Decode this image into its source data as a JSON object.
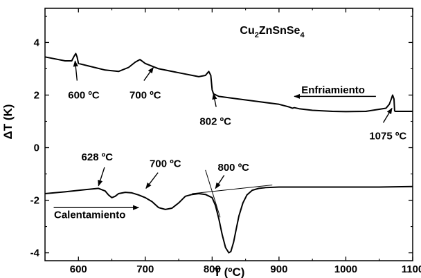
{
  "chart_data": {
    "type": "line",
    "compound": {
      "base": [
        "Cu",
        "ZnSnSe"
      ],
      "subs": [
        "2",
        "4"
      ]
    },
    "xlabel": "T (ºC)",
    "ylabel": "ΔT (K)",
    "xlim": [
      550,
      1100
    ],
    "ylim": [
      -4.3,
      5.3
    ],
    "x_ticks": [
      600,
      700,
      800,
      900,
      1000,
      1100
    ],
    "y_ticks": [
      -4,
      -2,
      0,
      2,
      4
    ],
    "grid": false,
    "series": [
      {
        "name": "Enfriamiento",
        "x": [
          550,
          580,
          590,
          593,
          596,
          598,
          600,
          640,
          660,
          675,
          685,
          692,
          700,
          720,
          750,
          780,
          790,
          795,
          798,
          800,
          802,
          810,
          840,
          870,
          900,
          915,
          920,
          923,
          930,
          950,
          980,
          1000,
          1030,
          1060,
          1065,
          1068,
          1070,
          1072,
          1073,
          1074,
          1080,
          1100
        ],
        "y": [
          3.45,
          3.3,
          3.3,
          3.45,
          3.58,
          3.45,
          3.2,
          2.95,
          2.9,
          3.05,
          3.25,
          3.35,
          3.2,
          3.0,
          2.85,
          2.7,
          2.75,
          2.9,
          2.75,
          2.2,
          2.05,
          1.95,
          1.85,
          1.75,
          1.65,
          1.55,
          1.5,
          1.52,
          1.48,
          1.42,
          1.38,
          1.37,
          1.38,
          1.5,
          1.65,
          1.85,
          2.0,
          1.85,
          1.4,
          1.38,
          1.38,
          1.38
        ]
      },
      {
        "name": "Calentamiento",
        "x": [
          550,
          580,
          610,
          630,
          640,
          645,
          650,
          655,
          660,
          670,
          680,
          690,
          700,
          710,
          720,
          730,
          740,
          750,
          760,
          770,
          780,
          790,
          800,
          805,
          810,
          815,
          820,
          825,
          828,
          832,
          836,
          840,
          846,
          852,
          860,
          870,
          880,
          900,
          950,
          1000,
          1050,
          1100
        ],
        "y": [
          -1.75,
          -1.68,
          -1.6,
          -1.55,
          -1.65,
          -1.8,
          -1.9,
          -1.85,
          -1.75,
          -1.7,
          -1.72,
          -1.8,
          -1.9,
          -2.05,
          -2.28,
          -2.35,
          -2.3,
          -2.1,
          -1.85,
          -1.78,
          -1.75,
          -1.78,
          -1.9,
          -2.2,
          -2.7,
          -3.3,
          -3.8,
          -4.0,
          -3.95,
          -3.6,
          -3.1,
          -2.6,
          -2.1,
          -1.8,
          -1.62,
          -1.55,
          -1.52,
          -1.5,
          -1.5,
          -1.5,
          -1.5,
          -1.48
        ]
      }
    ],
    "tangent_lines": [
      {
        "x": [
          770,
          890
        ],
        "y": [
          -1.75,
          -1.42
        ]
      },
      {
        "x": [
          790,
          812
        ],
        "y": [
          -0.85,
          -2.65
        ]
      }
    ],
    "annotations": [
      {
        "text": "600 ºC",
        "x": 608,
        "y": 2.0,
        "arrow_from": [
          598,
          2.55
        ],
        "arrow_to": [
          595,
          3.3
        ]
      },
      {
        "text": "700 ºC",
        "x": 700,
        "y": 2.0,
        "arrow_from": [
          698,
          2.55
        ],
        "arrow_to": [
          712,
          3.05
        ]
      },
      {
        "text": "802 ºC",
        "x": 805,
        "y": 1.0,
        "arrow_from": [
          806,
          1.55
        ],
        "arrow_to": [
          802,
          2.05
        ]
      },
      {
        "text": "1075 ºC",
        "x": 1063,
        "y": 0.45,
        "arrow_from": [
          1056,
          0.95
        ],
        "arrow_to": [
          1069,
          1.5
        ]
      },
      {
        "text": "Enfriamiento",
        "x": 981,
        "y": 2.2,
        "arrow_from": [
          1045,
          1.95
        ],
        "arrow_to": [
          923,
          1.95
        ]
      },
      {
        "text": "628 ºC",
        "x": 628,
        "y": -0.35,
        "arrow_from": [
          639,
          -0.75
        ],
        "arrow_to": [
          630,
          -1.45
        ]
      },
      {
        "text": "700 ºC",
        "x": 730,
        "y": -0.6,
        "arrow_from": [
          719,
          -0.95
        ],
        "arrow_to": [
          701,
          -1.55
        ]
      },
      {
        "text": "800 ºC",
        "x": 832,
        "y": -0.75,
        "arrow_from": [
          818,
          -1.05
        ],
        "arrow_to": [
          805,
          -1.55
        ]
      },
      {
        "text": "Calentamiento",
        "x": 617,
        "y": -2.55,
        "arrow_from": [
          563,
          -2.28
        ],
        "arrow_to": [
          690,
          -2.28
        ]
      }
    ]
  }
}
